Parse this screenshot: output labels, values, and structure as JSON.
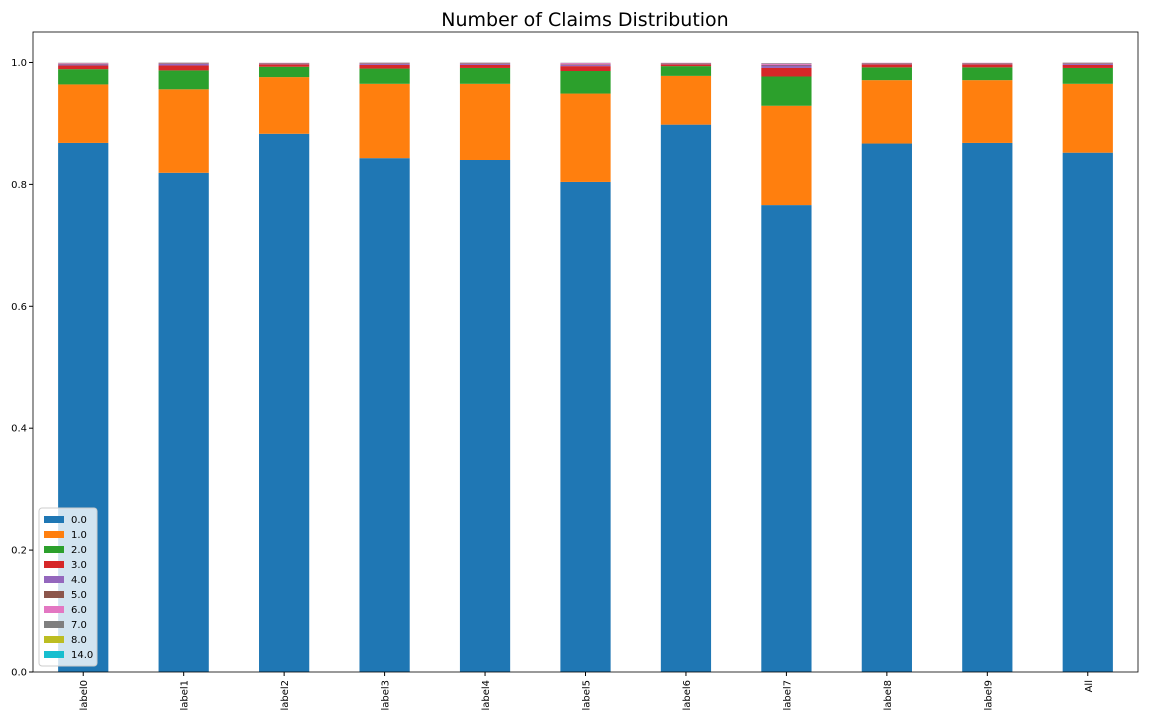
{
  "chart_data": {
    "type": "bar",
    "stacked": true,
    "title": "Number of Claims Distribution",
    "xlabel": "",
    "ylabel": "",
    "ylim": [
      0,
      1.05
    ],
    "yticks": [
      "0.0",
      "0.2",
      "0.4",
      "0.6",
      "0.8",
      "1.0"
    ],
    "ytick_values": [
      0,
      0.2,
      0.4,
      0.6,
      0.8,
      1.0
    ],
    "grid": false,
    "legend_position": "lower-left",
    "categories": [
      "label0",
      "label1",
      "label2",
      "label3",
      "label4",
      "label5",
      "label6",
      "label7",
      "label8",
      "label9",
      "All"
    ],
    "series": [
      {
        "name": "0.0",
        "color": "#1f77b4",
        "values": [
          0.868,
          0.819,
          0.883,
          0.843,
          0.84,
          0.804,
          0.898,
          0.766,
          0.867,
          0.868,
          0.852
        ]
      },
      {
        "name": "1.0",
        "color": "#ff7f0e",
        "values": [
          0.096,
          0.137,
          0.093,
          0.122,
          0.125,
          0.145,
          0.08,
          0.163,
          0.104,
          0.103,
          0.113
        ]
      },
      {
        "name": "2.0",
        "color": "#2ca02c",
        "values": [
          0.025,
          0.031,
          0.017,
          0.025,
          0.026,
          0.037,
          0.016,
          0.048,
          0.021,
          0.021,
          0.026
        ]
      },
      {
        "name": "3.0",
        "color": "#d62728",
        "values": [
          0.006,
          0.008,
          0.004,
          0.006,
          0.005,
          0.008,
          0.003,
          0.014,
          0.005,
          0.005,
          0.005
        ]
      },
      {
        "name": "4.0",
        "color": "#9467bd",
        "values": [
          0.002,
          0.003,
          0.001,
          0.002,
          0.002,
          0.002,
          0.001,
          0.004,
          0.001,
          0.001,
          0.002
        ]
      },
      {
        "name": "5.0",
        "color": "#8c564b",
        "values": [
          0.001,
          0.001,
          0.001,
          0.001,
          0.001,
          0.001,
          0.001,
          0.001,
          0.001,
          0.001,
          0.001
        ]
      },
      {
        "name": "6.0",
        "color": "#e377c2",
        "values": [
          0.001,
          0.0005,
          0.0005,
          0.0005,
          0.0005,
          0.002,
          0.0005,
          0.002,
          0.0005,
          0.0005,
          0.0005
        ]
      },
      {
        "name": "7.0",
        "color": "#7f7f7f",
        "values": [
          0.0005,
          0.0005,
          0.0,
          0.0005,
          0.0005,
          0.0005,
          0.0,
          0.001,
          0.0,
          0.0,
          0.0005
        ]
      },
      {
        "name": "8.0",
        "color": "#bcbd22",
        "values": [
          0.0,
          0.0,
          0.0,
          0.0,
          0.0,
          0.0,
          0.0,
          0.0,
          0.0,
          0.0,
          0.0
        ]
      },
      {
        "name": "14.0",
        "color": "#17becf",
        "values": [
          0.0,
          0.0,
          0.0,
          0.0,
          0.0,
          0.0,
          0.0,
          0.0,
          0.0,
          0.0,
          0.0
        ]
      }
    ]
  }
}
